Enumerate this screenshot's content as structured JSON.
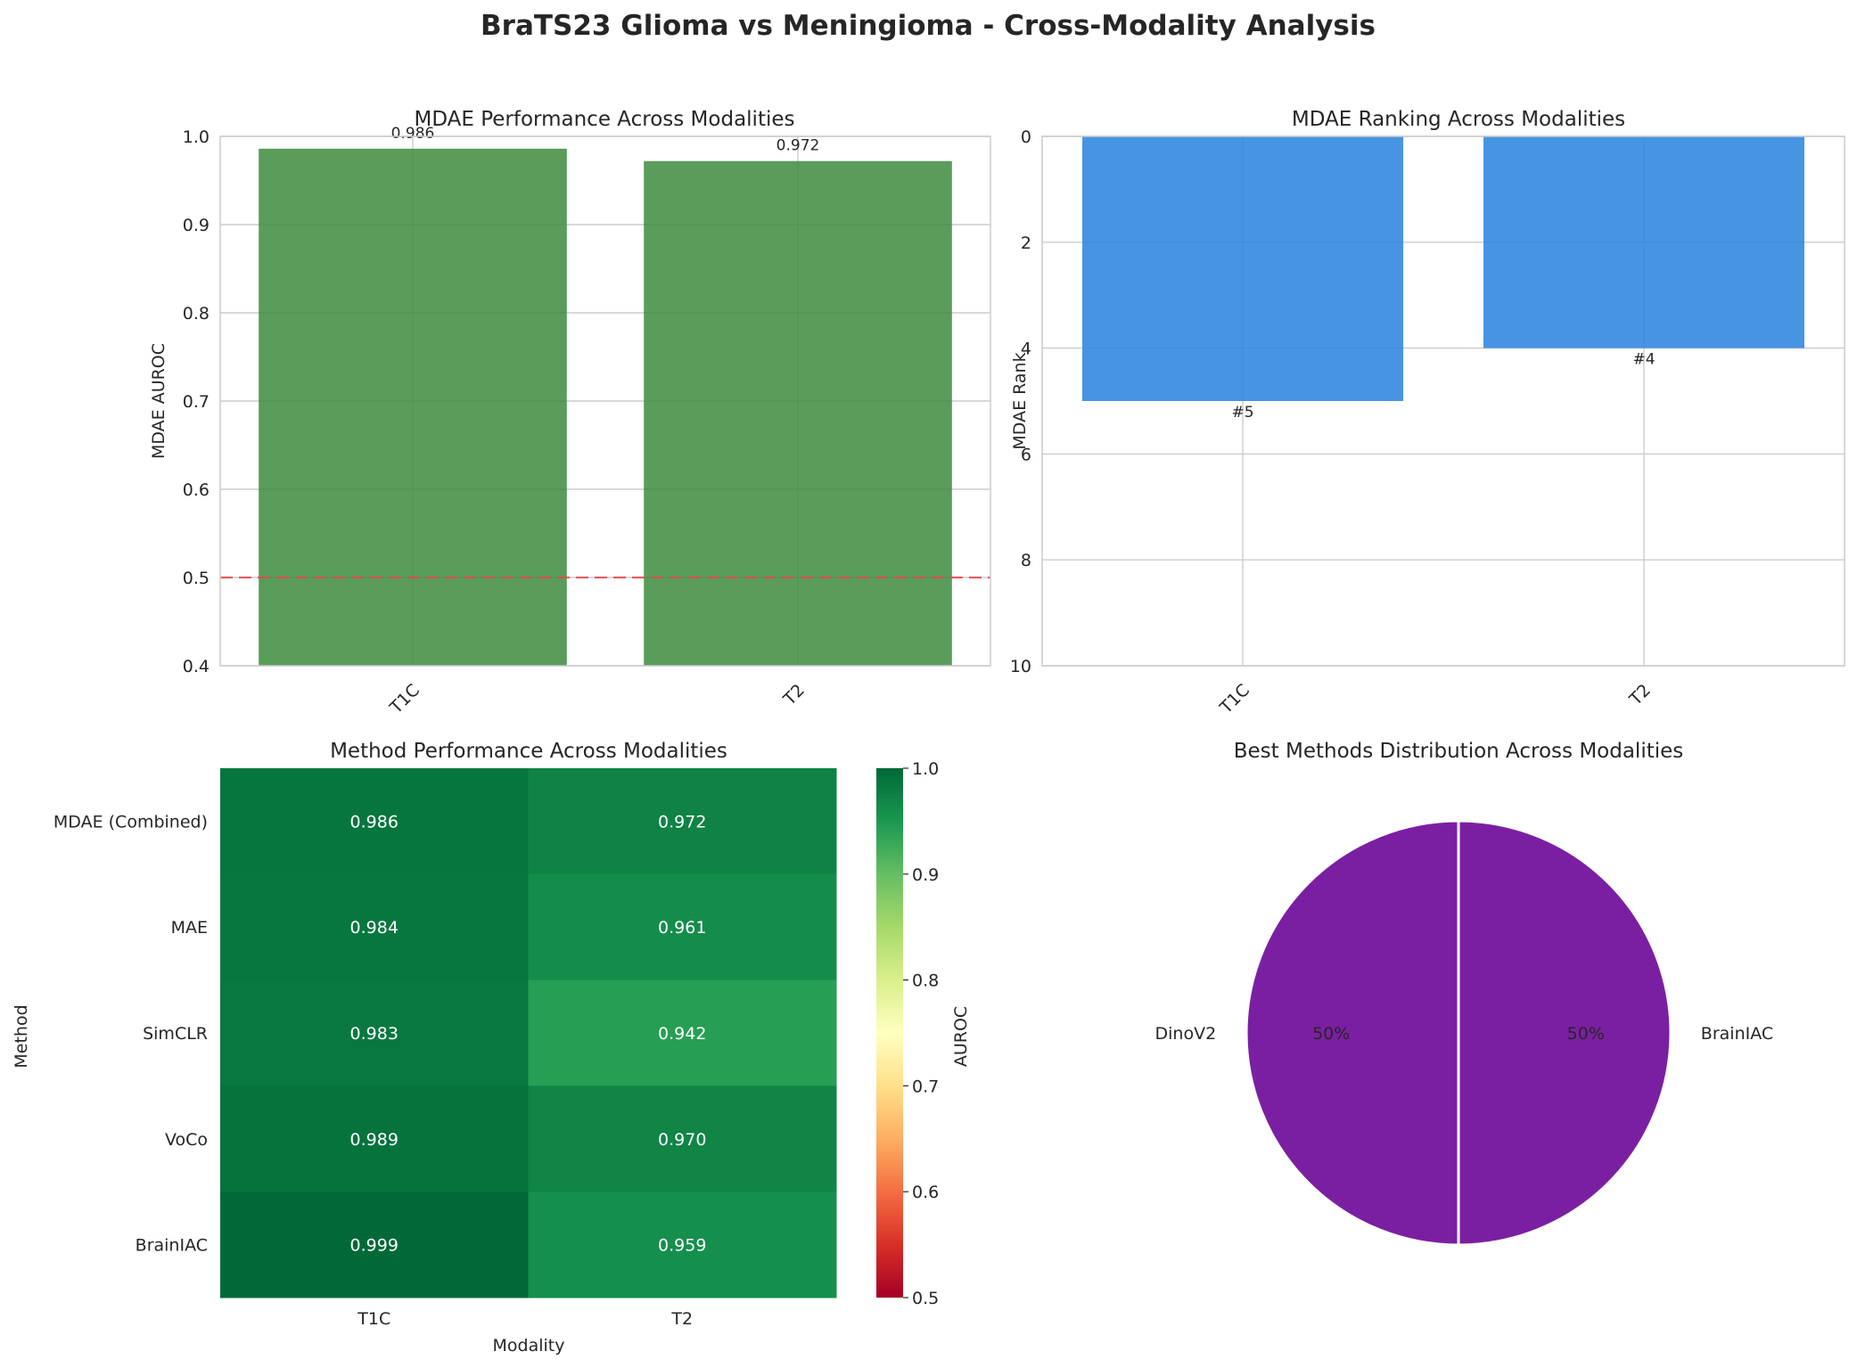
{
  "figure": {
    "suptitle": "BraTS23 Glioma vs Meningioma - Cross-Modality Analysis"
  },
  "chart_data": [
    {
      "type": "bar",
      "title": "MDAE Performance Across Modalities",
      "categories": [
        "T1C",
        "T2"
      ],
      "values": [
        0.986,
        0.972
      ],
      "value_labels": [
        "0.986",
        "0.972"
      ],
      "ylabel": "MDAE AUROC",
      "xlabel": "",
      "ylim": [
        0.4,
        1.0
      ],
      "yticks": [
        0.4,
        0.5,
        0.6,
        0.7,
        0.8,
        0.9,
        1.0
      ],
      "ytick_labels": [
        "0.4",
        "0.5",
        "0.6",
        "0.7",
        "0.8",
        "0.9",
        "1.0"
      ],
      "reference_line": 0.5,
      "bar_color": "#3d8b3d",
      "reference_color": "#e8474c",
      "grid": true
    },
    {
      "type": "bar",
      "title": "MDAE Ranking Across Modalities",
      "categories": [
        "T1C",
        "T2"
      ],
      "values": [
        5,
        4
      ],
      "value_labels": [
        "#5",
        "#4"
      ],
      "ylabel": "MDAE Rank",
      "xlabel": "",
      "ylim": [
        10,
        0
      ],
      "inverted_y": true,
      "yticks": [
        0,
        2,
        4,
        6,
        8,
        10
      ],
      "ytick_labels": [
        "0",
        "2",
        "4",
        "6",
        "8",
        "10"
      ],
      "bar_color": "#2e86de",
      "grid": true
    },
    {
      "type": "heatmap",
      "title": "Method Performance Across Modalities",
      "rows": [
        "MDAE (Combined)",
        "MAE",
        "SimCLR",
        "VoCo",
        "BrainIAC"
      ],
      "columns": [
        "T1C",
        "T2"
      ],
      "values": [
        [
          0.986,
          0.972
        ],
        [
          0.984,
          0.961
        ],
        [
          0.983,
          0.942
        ],
        [
          0.989,
          0.97
        ],
        [
          0.999,
          0.959
        ]
      ],
      "value_labels": [
        [
          "0.986",
          "0.972"
        ],
        [
          "0.984",
          "0.961"
        ],
        [
          "0.983",
          "0.942"
        ],
        [
          "0.989",
          "0.970"
        ],
        [
          "0.999",
          "0.959"
        ]
      ],
      "xlabel": "Modality",
      "ylabel": "Method",
      "colorbar_label": "AUROC",
      "colormap": "RdYlGn",
      "vmin": 0.5,
      "vmax": 1.0,
      "colorbar_ticks": [
        0.5,
        0.6,
        0.7,
        0.8,
        0.9,
        1.0
      ],
      "colorbar_tick_labels": [
        "0.5",
        "0.6",
        "0.7",
        "0.8",
        "0.9",
        "1.0"
      ]
    },
    {
      "type": "pie",
      "title": "Best Methods Distribution Across Modalities",
      "labels": [
        "DinoV2",
        "BrainIAC"
      ],
      "values": [
        50,
        50
      ],
      "pct_labels": [
        "50%",
        "50%"
      ],
      "colors": [
        "#7b1fa2",
        "#7b1fa2"
      ]
    }
  ]
}
